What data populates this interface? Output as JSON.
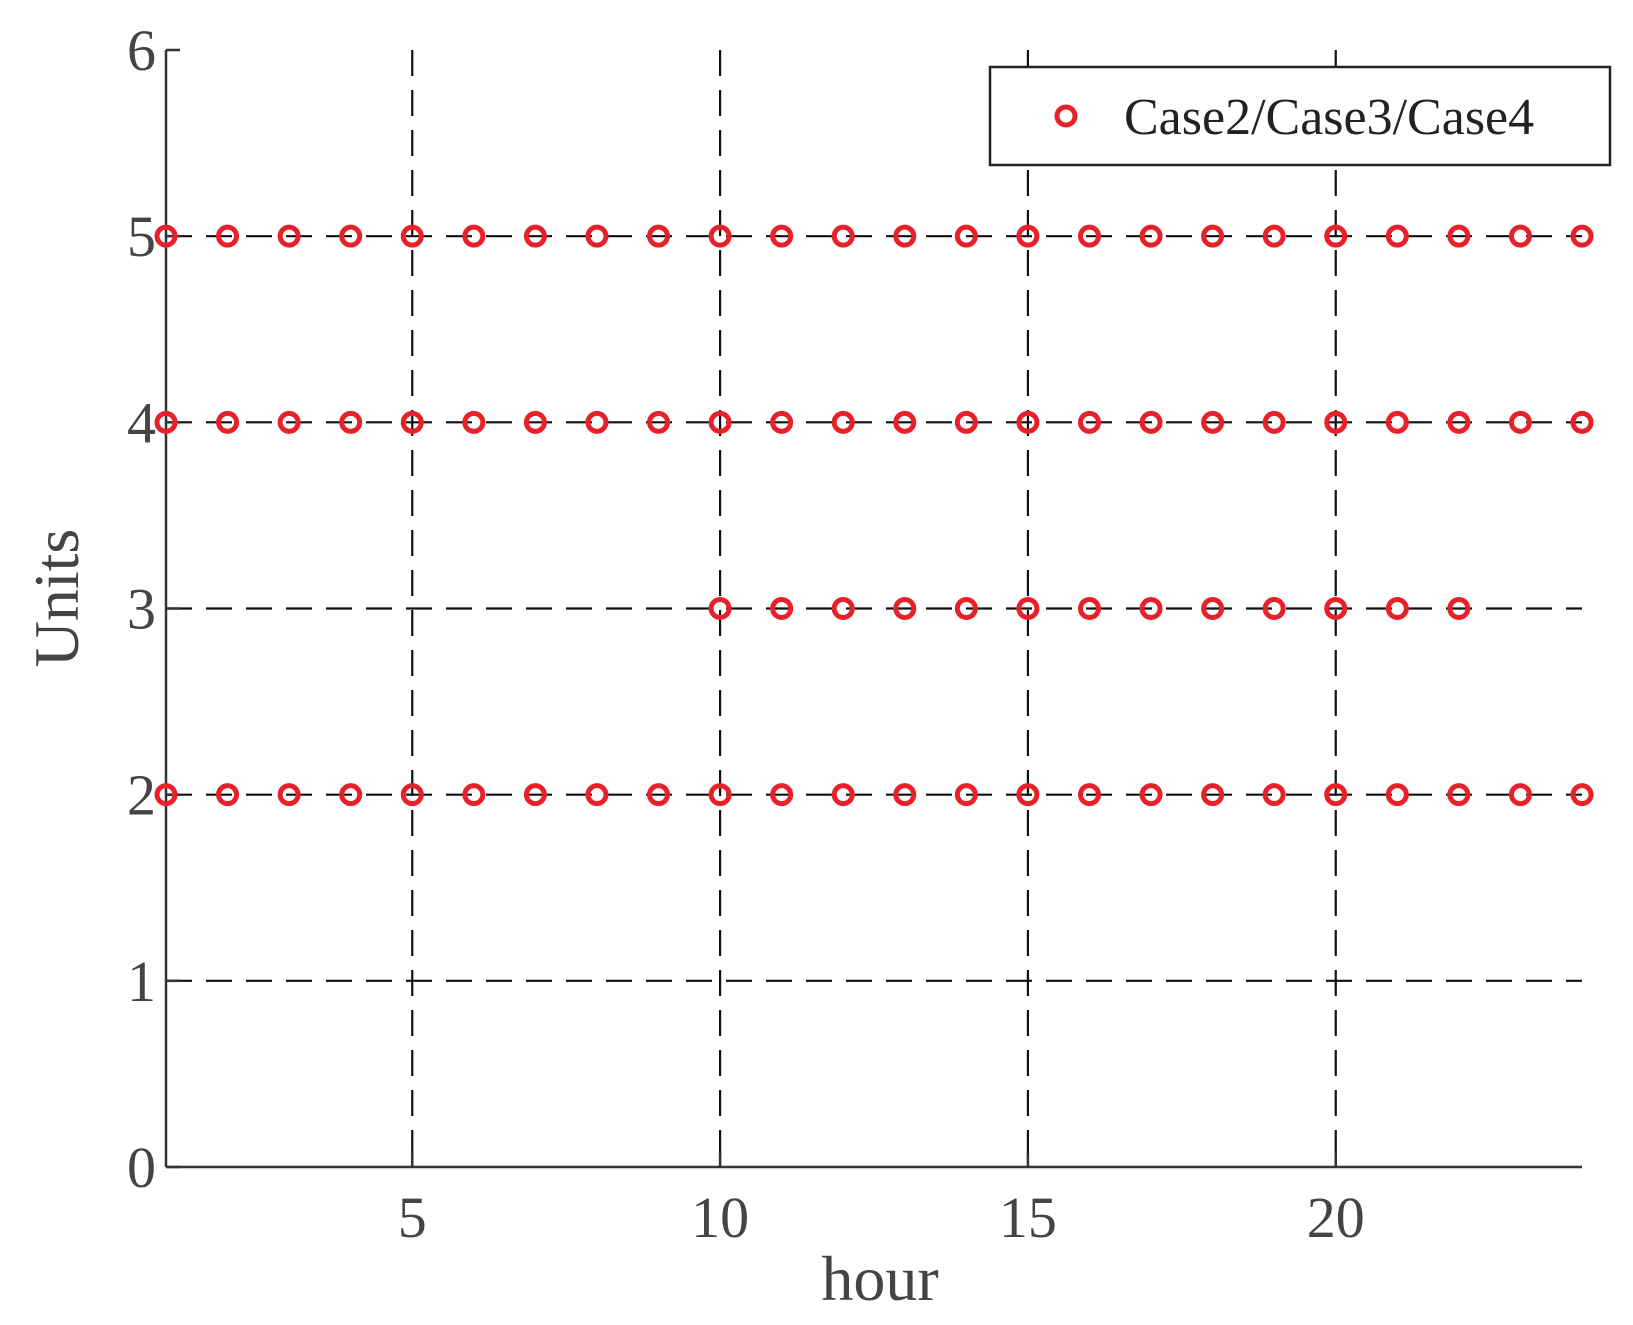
{
  "chart_data": {
    "type": "scatter",
    "xlabel": "hour",
    "ylabel": "Units",
    "xlim": [
      1,
      24
    ],
    "ylim": [
      0,
      6
    ],
    "xticks": [
      5,
      10,
      15,
      20
    ],
    "yticks": [
      0,
      1,
      2,
      3,
      4,
      5,
      6
    ],
    "grid": true,
    "legend_position": "top-right",
    "series": [
      {
        "name": "Case2/Case3/Case4",
        "color": "#e8202a",
        "marker": "circle-open",
        "points": [
          [
            1,
            2
          ],
          [
            2,
            2
          ],
          [
            3,
            2
          ],
          [
            4,
            2
          ],
          [
            5,
            2
          ],
          [
            6,
            2
          ],
          [
            7,
            2
          ],
          [
            8,
            2
          ],
          [
            9,
            2
          ],
          [
            10,
            2
          ],
          [
            11,
            2
          ],
          [
            12,
            2
          ],
          [
            13,
            2
          ],
          [
            14,
            2
          ],
          [
            15,
            2
          ],
          [
            16,
            2
          ],
          [
            17,
            2
          ],
          [
            18,
            2
          ],
          [
            19,
            2
          ],
          [
            20,
            2
          ],
          [
            21,
            2
          ],
          [
            22,
            2
          ],
          [
            23,
            2
          ],
          [
            24,
            2
          ],
          [
            10,
            3
          ],
          [
            11,
            3
          ],
          [
            12,
            3
          ],
          [
            13,
            3
          ],
          [
            14,
            3
          ],
          [
            15,
            3
          ],
          [
            16,
            3
          ],
          [
            17,
            3
          ],
          [
            18,
            3
          ],
          [
            19,
            3
          ],
          [
            20,
            3
          ],
          [
            21,
            3
          ],
          [
            22,
            3
          ],
          [
            1,
            4
          ],
          [
            2,
            4
          ],
          [
            3,
            4
          ],
          [
            4,
            4
          ],
          [
            5,
            4
          ],
          [
            6,
            4
          ],
          [
            7,
            4
          ],
          [
            8,
            4
          ],
          [
            9,
            4
          ],
          [
            10,
            4
          ],
          [
            11,
            4
          ],
          [
            12,
            4
          ],
          [
            13,
            4
          ],
          [
            14,
            4
          ],
          [
            15,
            4
          ],
          [
            16,
            4
          ],
          [
            17,
            4
          ],
          [
            18,
            4
          ],
          [
            19,
            4
          ],
          [
            20,
            4
          ],
          [
            21,
            4
          ],
          [
            22,
            4
          ],
          [
            23,
            4
          ],
          [
            24,
            4
          ],
          [
            1,
            5
          ],
          [
            2,
            5
          ],
          [
            3,
            5
          ],
          [
            4,
            5
          ],
          [
            5,
            5
          ],
          [
            6,
            5
          ],
          [
            7,
            5
          ],
          [
            8,
            5
          ],
          [
            9,
            5
          ],
          [
            10,
            5
          ],
          [
            11,
            5
          ],
          [
            12,
            5
          ],
          [
            13,
            5
          ],
          [
            14,
            5
          ],
          [
            15,
            5
          ],
          [
            16,
            5
          ],
          [
            17,
            5
          ],
          [
            18,
            5
          ],
          [
            19,
            5
          ],
          [
            20,
            5
          ],
          [
            21,
            5
          ],
          [
            22,
            5
          ],
          [
            23,
            5
          ],
          [
            24,
            5
          ]
        ]
      }
    ]
  }
}
